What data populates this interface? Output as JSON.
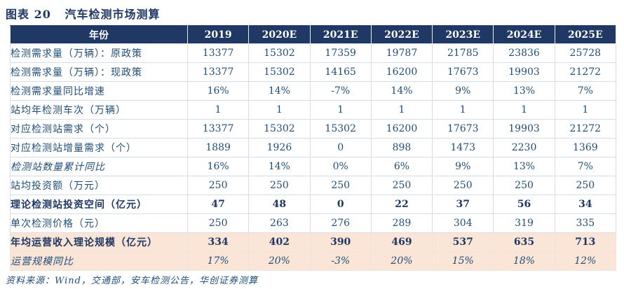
{
  "title": "图表 20   汽车检测市场测算",
  "footer": "资料来源：Wind，交通部，安车检测公告，华创证券测算",
  "colors": {
    "header_bg": "#1f3864",
    "header_text": "#ffffff",
    "text": "#1f4e79",
    "bold_text": "#1f3864",
    "title_color": "#1f3864",
    "highlight_bg": "#fbe5d6",
    "border": "#d7dde8"
  },
  "table": {
    "year_header": "年份",
    "columns": [
      "2019",
      "2020E",
      "2021E",
      "2022E",
      "2023E",
      "2024E",
      "2025E"
    ],
    "rows": [
      {
        "label": "检测需求量（万辆）：原政策",
        "style": "normal",
        "values": [
          "13377",
          "15302",
          "17359",
          "19787",
          "21785",
          "23836",
          "25728"
        ]
      },
      {
        "label": "检测需求量（万辆）：现政策",
        "style": "normal",
        "values": [
          "13377",
          "15302",
          "14165",
          "16200",
          "17673",
          "19903",
          "21272"
        ]
      },
      {
        "label": "检测需求量同比增速",
        "style": "normal",
        "values": [
          "16%",
          "14%",
          "-7%",
          "14%",
          "9%",
          "13%",
          "7%"
        ]
      },
      {
        "label": "站均年检测车次（万辆）",
        "style": "normal",
        "values": [
          "1",
          "1",
          "1",
          "1",
          "1",
          "1",
          "1"
        ]
      },
      {
        "label": "对应检测站需求（个）",
        "style": "normal",
        "values": [
          "13377",
          "15302",
          "15302",
          "16200",
          "17673",
          "19903",
          "21272"
        ]
      },
      {
        "label": "对应检测站增量需求（个）",
        "style": "normal",
        "values": [
          "1889",
          "1926",
          "0",
          "898",
          "1473",
          "2230",
          "1369"
        ]
      },
      {
        "label": "检测站数量累计同比",
        "style": "label-italic",
        "values": [
          "16%",
          "14%",
          "0%",
          "6%",
          "9%",
          "13%",
          "7%"
        ]
      },
      {
        "label": "站均投资额（万元）",
        "style": "normal",
        "values": [
          "250",
          "250",
          "250",
          "250",
          "250",
          "250",
          "250"
        ]
      },
      {
        "label": "理论检测站投资空间（亿元）",
        "style": "bold",
        "values": [
          "47",
          "48",
          "0",
          "22",
          "37",
          "56",
          "34"
        ]
      },
      {
        "label": "单次检测价格（元）",
        "style": "normal",
        "values": [
          "250",
          "263",
          "276",
          "289",
          "304",
          "319",
          "335"
        ]
      },
      {
        "label": "年均运营收入理论规模（亿元）",
        "style": "bold-highlight",
        "values": [
          "334",
          "402",
          "390",
          "469",
          "537",
          "635",
          "713"
        ]
      },
      {
        "label": "运营规模同比",
        "style": "italic-highlight",
        "values": [
          "17%",
          "20%",
          "-3%",
          "20%",
          "15%",
          "18%",
          "12%"
        ]
      }
    ]
  }
}
